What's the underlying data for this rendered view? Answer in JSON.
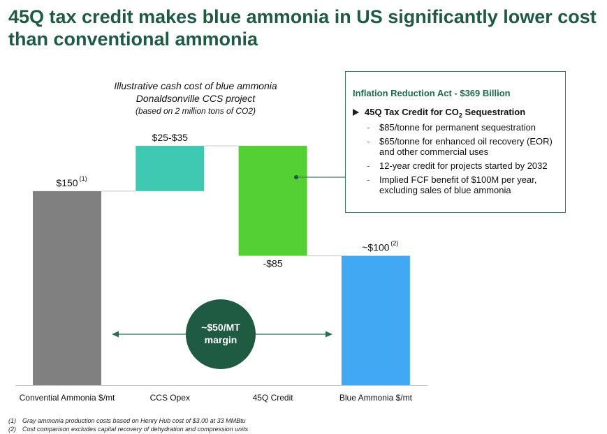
{
  "title": "45Q tax credit makes blue ammonia in US significantly lower cost than conventional ammonia",
  "subtitle": {
    "line1": "Illustrative cash cost of blue ammonia",
    "line2": "Donaldsonville CCS project",
    "line3": "(based on 2 million tons of CO2)"
  },
  "chart_data": {
    "type": "bar",
    "subtype": "waterfall",
    "categories": [
      "Convential Ammonia $/mt",
      "CCS Opex",
      "45Q Credit",
      "Blue Ammonia $/mt"
    ],
    "bars": [
      {
        "start": 0,
        "end": 150,
        "label": "$150",
        "note": "(1)",
        "color": "#808080"
      },
      {
        "start": 150,
        "end": 185,
        "label": "$25-$35",
        "note": "",
        "color": "#3fc9b3"
      },
      {
        "start": 185,
        "end": 100,
        "label": "-$85",
        "note": "",
        "color": "#55d034"
      },
      {
        "start": 0,
        "end": 100,
        "label": "~$100",
        "note": "(2)",
        "color": "#41a8f3"
      }
    ],
    "ylim": [
      0,
      200
    ],
    "grid": false,
    "annotation": {
      "line1": "~$50/MT",
      "line2": "margin",
      "color": "#1f5a43"
    }
  },
  "callout": {
    "title": "Inflation Reduction Act - $369 Billion",
    "heading_main": "45Q Tax Credit for CO",
    "heading_sub": "2",
    "heading_end": " Sequestration",
    "items": [
      "$85/tonne for permanent sequestration",
      "$65/tonne for enhanced oil recovery (EOR) and other commercial uses",
      "12-year credit for projects started by 2032",
      "Implied FCF benefit of $100M per year, excluding sales of blue ammonia"
    ],
    "dash": "-"
  },
  "footnotes": [
    {
      "num": "(1)",
      "text": "Gray ammonia production costs based on Henry Hub cost of $3.00 at 33 MMBtu"
    },
    {
      "num": "(2)",
      "text": "Cost comparison excludes capital recovery of dehydration and compression units"
    }
  ]
}
